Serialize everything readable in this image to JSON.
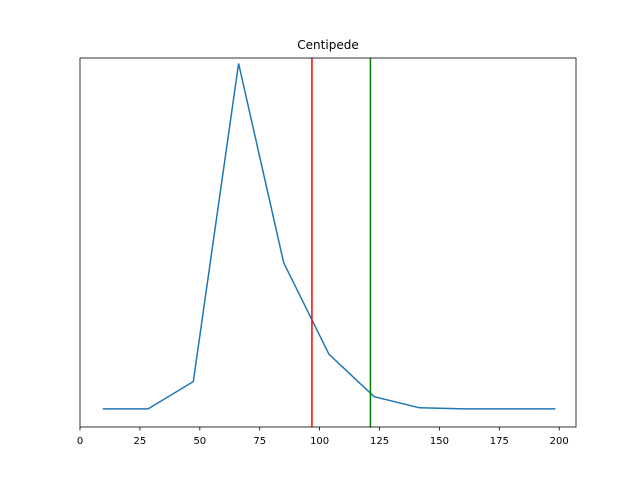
{
  "chart_data": {
    "type": "line",
    "title": "Centipede",
    "xlabel": "",
    "ylabel": "",
    "xlim": [
      0,
      207
    ],
    "ylim": [
      0,
      1
    ],
    "x_ticks": [
      0,
      25,
      50,
      75,
      100,
      125,
      150,
      175,
      200
    ],
    "y_ticks_visible": false,
    "grid": false,
    "series": [
      {
        "color": "#1f77b4",
        "x": [
          9.5,
          28.4,
          47.3,
          66.2,
          85.0,
          103.9,
          122.8,
          141.7,
          160.6,
          179.5,
          198.4
        ],
        "y": [
          0.049,
          0.049,
          0.123,
          0.985,
          0.445,
          0.197,
          0.082,
          0.052,
          0.049,
          0.049,
          0.049
        ]
      }
    ],
    "vlines": [
      {
        "x": 96.8,
        "color": "#ff0000"
      },
      {
        "x": 121.2,
        "color": "#008000"
      }
    ]
  }
}
